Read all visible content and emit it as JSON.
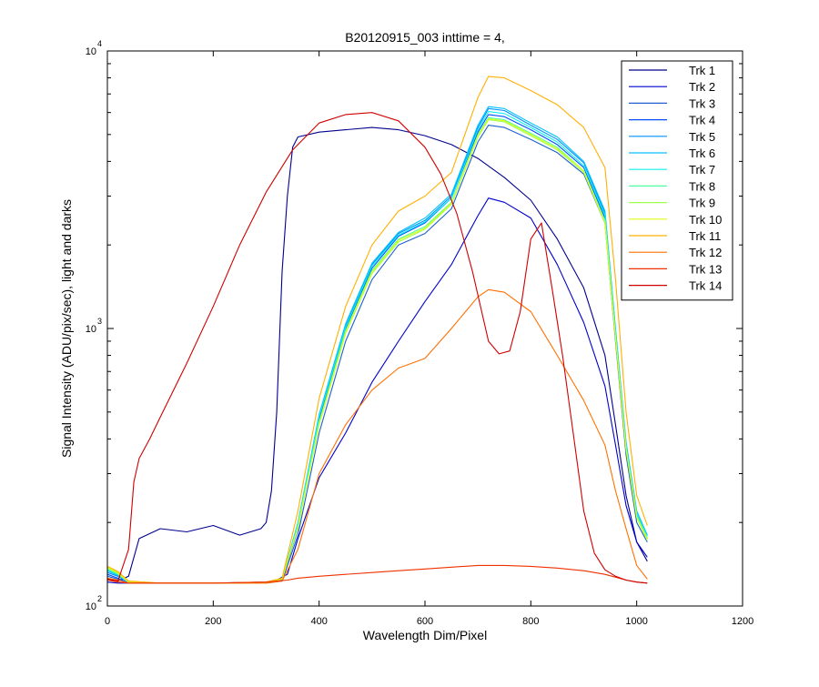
{
  "chart_data": {
    "type": "line",
    "title": "B20120915_003 inttime = 4,",
    "xlabel": "Wavelength Dim/Pixel",
    "ylabel": "Signal Intensity (ADU/pix/sec), light and darks",
    "xlim": [
      0,
      1200
    ],
    "ylim": [
      100,
      10000
    ],
    "yscale": "log",
    "xticks": [
      "0",
      "200",
      "400",
      "600",
      "800",
      "1000",
      "1200"
    ],
    "yticks": [
      {
        "base": "10",
        "exp": "2",
        "value": 100
      },
      {
        "base": "10",
        "exp": "3",
        "value": 1000
      },
      {
        "base": "10",
        "exp": "4",
        "value": 10000
      }
    ],
    "grid": false,
    "legend_position": "top-right",
    "series": [
      {
        "name": "Trk 1",
        "color": "#00008F",
        "x": [
          0,
          20,
          40,
          60,
          100,
          150,
          200,
          250,
          290,
          300,
          310,
          320,
          330,
          340,
          350,
          360,
          400,
          450,
          500,
          550,
          600,
          650,
          700,
          750,
          800,
          850,
          900,
          940,
          960,
          980,
          1000,
          1020
        ],
        "y": [
          125,
          123,
          128,
          175,
          190,
          185,
          195,
          180,
          190,
          200,
          260,
          500,
          1600,
          3000,
          4500,
          4900,
          5100,
          5200,
          5300,
          5200,
          4950,
          4600,
          4100,
          3500,
          2900,
          2100,
          1400,
          800,
          450,
          250,
          170,
          145
        ]
      },
      {
        "name": "Trk 2",
        "color": "#0000CF",
        "x": [
          0,
          20,
          40,
          100,
          200,
          300,
          320,
          340,
          360,
          400,
          450,
          500,
          550,
          600,
          650,
          700,
          720,
          750,
          800,
          850,
          900,
          940,
          960,
          980,
          1000,
          1020
        ],
        "y": [
          122,
          121,
          121,
          121,
          121,
          122,
          124,
          130,
          175,
          290,
          420,
          640,
          900,
          1250,
          1700,
          2550,
          2950,
          2850,
          2500,
          1700,
          1050,
          620,
          380,
          230,
          170,
          150
        ]
      },
      {
        "name": "Trk 3",
        "color": "#1F5FCF",
        "x": [
          0,
          20,
          40,
          100,
          200,
          300,
          330,
          360,
          400,
          450,
          500,
          550,
          600,
          650,
          700,
          720,
          750,
          800,
          850,
          900,
          940,
          960,
          980,
          1000,
          1020
        ],
        "y": [
          128,
          125,
          121,
          121,
          121,
          121,
          123,
          180,
          420,
          900,
          1500,
          2000,
          2200,
          2700,
          4700,
          5400,
          5300,
          4800,
          4300,
          3600,
          2400,
          900,
          350,
          200,
          170
        ]
      },
      {
        "name": "Trk 4",
        "color": "#0050FF",
        "x": [
          0,
          20,
          40,
          100,
          200,
          300,
          330,
          360,
          400,
          450,
          500,
          550,
          600,
          650,
          700,
          720,
          750,
          800,
          850,
          900,
          940,
          960,
          980,
          1000,
          1020
        ],
        "y": [
          130,
          126,
          121,
          121,
          121,
          121,
          124,
          190,
          470,
          1000,
          1650,
          2150,
          2400,
          2950,
          5100,
          5900,
          5800,
          5200,
          4600,
          3800,
          2500,
          950,
          370,
          210,
          175
        ]
      },
      {
        "name": "Trk 5",
        "color": "#0090FF",
        "x": [
          0,
          20,
          40,
          100,
          200,
          300,
          330,
          360,
          400,
          450,
          500,
          550,
          600,
          650,
          700,
          720,
          750,
          800,
          850,
          900,
          940,
          960,
          980,
          1000,
          1020
        ],
        "y": [
          132,
          128,
          122,
          121,
          121,
          121,
          124,
          195,
          480,
          1020,
          1700,
          2200,
          2450,
          3000,
          5300,
          6200,
          6100,
          5400,
          4800,
          3950,
          2600,
          980,
          380,
          215,
          175
        ]
      },
      {
        "name": "Trk 6",
        "color": "#00C0FF",
        "x": [
          0,
          20,
          40,
          100,
          200,
          300,
          330,
          360,
          400,
          450,
          500,
          550,
          600,
          650,
          700,
          720,
          750,
          800,
          850,
          900,
          940,
          960,
          980,
          1000,
          1020
        ],
        "y": [
          134,
          129,
          122,
          121,
          121,
          121,
          125,
          200,
          490,
          1040,
          1720,
          2220,
          2500,
          3050,
          5400,
          6300,
          6200,
          5500,
          4900,
          4000,
          2650,
          1000,
          390,
          220,
          180
        ]
      },
      {
        "name": "Trk 7",
        "color": "#10EFEF",
        "x": [
          0,
          20,
          40,
          100,
          200,
          300,
          330,
          360,
          400,
          450,
          500,
          550,
          600,
          650,
          700,
          720,
          750,
          800,
          850,
          900,
          940,
          960,
          980,
          1000,
          1020
        ],
        "y": [
          135,
          130,
          122,
          121,
          121,
          121,
          125,
          198,
          480,
          1010,
          1680,
          2170,
          2420,
          2950,
          5200,
          6050,
          5950,
          5300,
          4700,
          3850,
          2550,
          970,
          380,
          215,
          178
        ]
      },
      {
        "name": "Trk 8",
        "color": "#50FF9F",
        "x": [
          0,
          20,
          40,
          100,
          200,
          300,
          330,
          360,
          400,
          450,
          500,
          550,
          600,
          650,
          700,
          720,
          750,
          800,
          850,
          900,
          940,
          960,
          980,
          1000,
          1020
        ],
        "y": [
          136,
          130,
          122,
          121,
          121,
          121,
          125,
          195,
          460,
          980,
          1620,
          2100,
          2330,
          2850,
          5000,
          5750,
          5650,
          5050,
          4500,
          3700,
          2450,
          940,
          370,
          210,
          175
        ]
      },
      {
        "name": "Trk 9",
        "color": "#9FFF50",
        "x": [
          0,
          20,
          40,
          100,
          200,
          300,
          330,
          360,
          400,
          450,
          500,
          550,
          600,
          650,
          700,
          720,
          750,
          800,
          850,
          900,
          940,
          960,
          980,
          1000,
          1020
        ],
        "y": [
          137,
          131,
          122,
          121,
          121,
          121,
          125,
          192,
          450,
          960,
          1580,
          2050,
          2280,
          2800,
          4900,
          5650,
          5550,
          4950,
          4400,
          3650,
          2400,
          920,
          365,
          208,
          172
        ]
      },
      {
        "name": "Trk 10",
        "color": "#DFFF10",
        "x": [
          0,
          20,
          40,
          100,
          200,
          300,
          330,
          360,
          400,
          450,
          500,
          550,
          600,
          650,
          700,
          720,
          750,
          800,
          850,
          900,
          940,
          960,
          980,
          1000,
          1020
        ],
        "y": [
          138,
          132,
          122,
          121,
          121,
          121,
          125,
          192,
          455,
          970,
          1600,
          2080,
          2300,
          2830,
          4950,
          5700,
          5600,
          5000,
          4450,
          3700,
          2420,
          930,
          368,
          210,
          175
        ]
      },
      {
        "name": "Trk 11",
        "color": "#FFB000",
        "x": [
          0,
          20,
          40,
          100,
          200,
          300,
          330,
          360,
          400,
          450,
          500,
          550,
          600,
          650,
          700,
          720,
          750,
          800,
          850,
          900,
          940,
          960,
          980,
          1000,
          1020
        ],
        "y": [
          139,
          133,
          123,
          121,
          121,
          122,
          126,
          220,
          560,
          1200,
          2000,
          2650,
          3000,
          3650,
          6800,
          8100,
          8000,
          7200,
          6400,
          5300,
          3800,
          1500,
          500,
          250,
          195
        ]
      },
      {
        "name": "Trk 12",
        "color": "#FF7000",
        "x": [
          0,
          20,
          40,
          100,
          200,
          300,
          330,
          360,
          400,
          450,
          500,
          550,
          600,
          650,
          700,
          720,
          750,
          800,
          850,
          900,
          940,
          960,
          980,
          1000,
          1020
        ],
        "y": [
          126,
          124,
          121,
          121,
          121,
          121,
          123,
          160,
          300,
          450,
          600,
          720,
          780,
          1000,
          1300,
          1380,
          1350,
          1150,
          800,
          550,
          380,
          260,
          190,
          140,
          125
        ]
      },
      {
        "name": "Trk 13",
        "color": "#EF3000",
        "x": [
          0,
          20,
          40,
          100,
          200,
          300,
          320,
          340,
          360,
          400,
          450,
          500,
          550,
          600,
          650,
          700,
          720,
          750,
          800,
          850,
          900,
          940,
          960,
          980,
          1000,
          1020
        ],
        "y": [
          124,
          122,
          121,
          121,
          121,
          122,
          123,
          124,
          126,
          128,
          130,
          132,
          134,
          136,
          138,
          140,
          140,
          140,
          139,
          137,
          134,
          130,
          127,
          124,
          122,
          121
        ]
      },
      {
        "name": "Trk 14",
        "color": "#CF0000",
        "x": [
          0,
          20,
          40,
          50,
          60,
          80,
          100,
          150,
          200,
          250,
          300,
          350,
          400,
          450,
          500,
          550,
          600,
          630,
          660,
          690,
          720,
          740,
          760,
          780,
          800,
          820,
          840,
          860,
          880,
          900,
          920,
          940,
          960,
          980,
          1000,
          1020
        ],
        "y": [
          125,
          123,
          160,
          280,
          340,
          400,
          480,
          750,
          1200,
          2000,
          3100,
          4400,
          5500,
          5900,
          6000,
          5600,
          4500,
          3600,
          2600,
          1600,
          900,
          810,
          830,
          1150,
          2100,
          2400,
          1400,
          800,
          420,
          220,
          155,
          135,
          128,
          124,
          122,
          121
        ]
      }
    ]
  }
}
